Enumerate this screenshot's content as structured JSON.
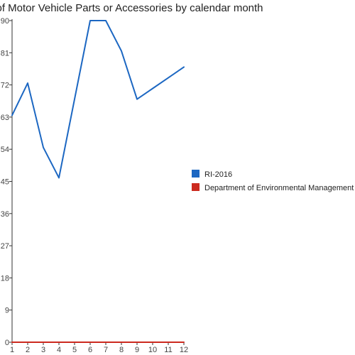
{
  "chart_data": {
    "type": "line",
    "title": "ft of Motor Vehicle Parts or Accessories by calendar month",
    "xlabel": "",
    "ylabel": "",
    "x": [
      1,
      2,
      3,
      4,
      5,
      6,
      7,
      8,
      9,
      10,
      11,
      12
    ],
    "ylim": [
      0,
      90
    ],
    "yticks": [
      0,
      9,
      18,
      27,
      36,
      45,
      54,
      63,
      72,
      81,
      90
    ],
    "grid": false,
    "legend_position": "right",
    "series": [
      {
        "name": "RI-2016",
        "color": "#1c67c2",
        "values": [
          63.5,
          72.5,
          54.5,
          46,
          68,
          90,
          90,
          81.5,
          68,
          71,
          74,
          77
        ]
      },
      {
        "name": "Department of Environmental Management",
        "color": "#cc2a1f",
        "values": [
          0,
          0,
          0,
          0,
          0,
          0,
          0,
          0,
          0,
          0,
          0,
          0
        ]
      }
    ]
  }
}
